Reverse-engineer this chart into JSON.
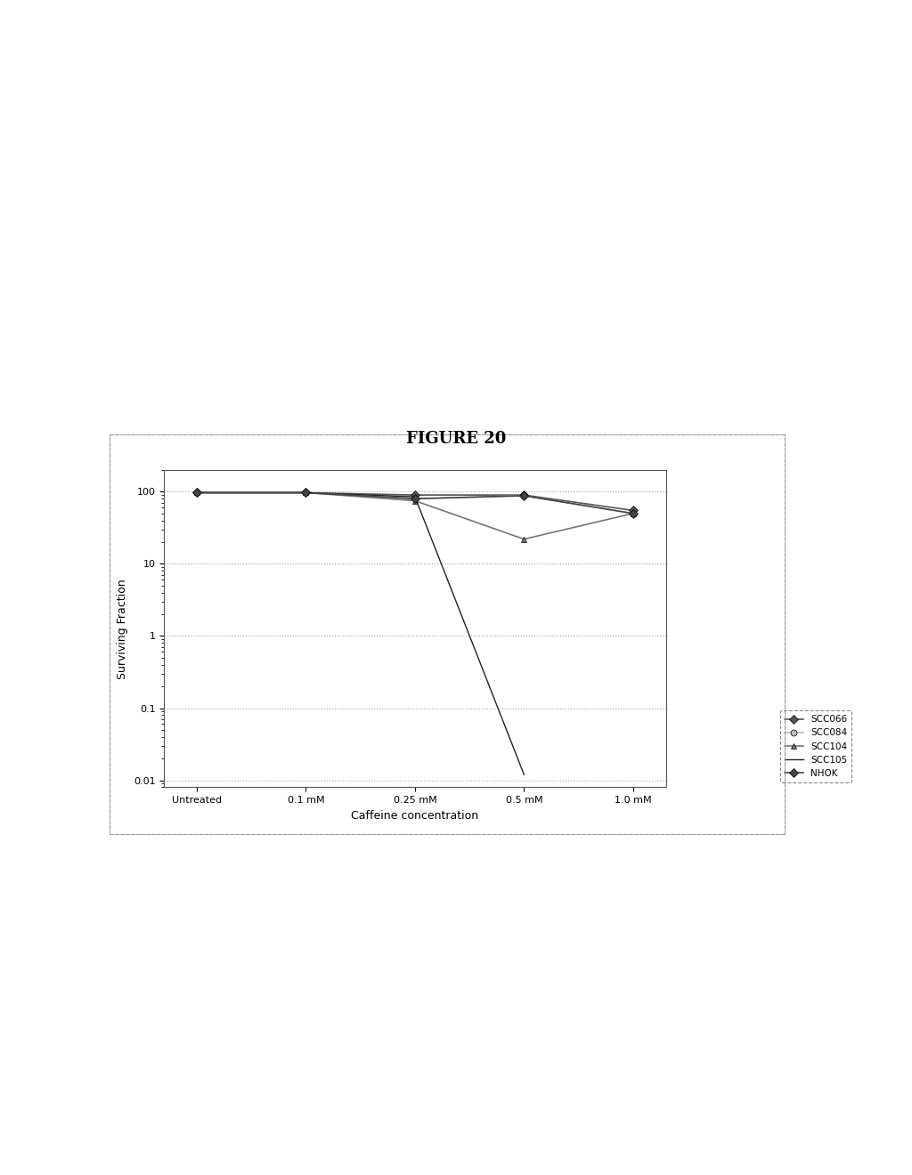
{
  "title": "FIGURE 20",
  "xlabel": "Caffeine concentration",
  "ylabel": "Surviving Fraction",
  "x_labels": [
    "Untreated",
    "0.1 mM",
    "0.25 mM",
    "0.5 mM",
    "1.0 mM"
  ],
  "x_values": [
    0,
    1,
    2,
    3,
    4
  ],
  "series": [
    {
      "name": "SCC066",
      "values": [
        97,
        97,
        88,
        90,
        55
      ],
      "color": "#555555",
      "marker": "D",
      "markersize": 6,
      "linewidth": 1.2,
      "linestyle": "-"
    },
    {
      "name": "SCC084",
      "values": [
        97,
        97,
        80,
        88,
        50
      ],
      "color": "#aaaaaa",
      "marker": "o",
      "markersize": 6,
      "linewidth": 1.2,
      "linestyle": "-"
    },
    {
      "name": "SCC104",
      "values": [
        97,
        97,
        78,
        22,
        50
      ],
      "color": "#777777",
      "marker": "^",
      "markersize": 6,
      "linewidth": 1.2,
      "linestyle": "-"
    },
    {
      "name": "SCC105",
      "values": [
        97,
        97,
        85,
        0.012,
        null
      ],
      "color": "#333333",
      "marker": "None",
      "markersize": 5,
      "linewidth": 1.0,
      "linestyle": "-"
    },
    {
      "name": "NHOK",
      "values": [
        97,
        97,
        80,
        88,
        50
      ],
      "color": "#444444",
      "marker": "D",
      "markersize": 6,
      "linewidth": 1.2,
      "linestyle": "-"
    }
  ],
  "ylim": [
    0.008,
    200
  ],
  "yticks": [
    0.01,
    0.1,
    1,
    10,
    100
  ],
  "ytick_labels": [
    "0.01",
    "0.1",
    "1",
    "10",
    "100"
  ],
  "background_color": "#ffffff",
  "plot_bg_color": "#ffffff",
  "grid_color": "#aaaaaa",
  "outer_border_color": "#999999",
  "figure_title_fontsize": 13,
  "axis_label_fontsize": 9,
  "tick_label_fontsize": 8
}
